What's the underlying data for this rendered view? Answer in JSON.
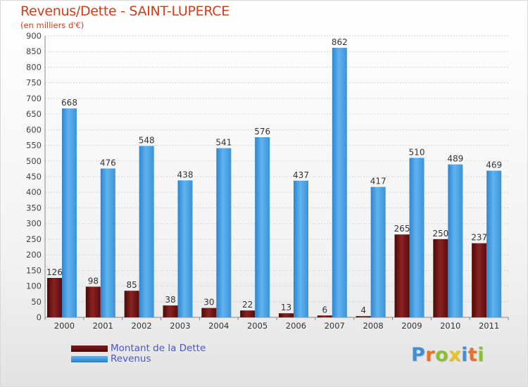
{
  "header": {
    "title": "Revenus/Dette - SAINT-LUPERCE",
    "subtitle": "(en milliers d'€)"
  },
  "legend": {
    "items": [
      {
        "label": "Montant de la Dette",
        "color": "#6b0f0f"
      },
      {
        "label": "Revenus",
        "color": "#3d97dc"
      }
    ]
  },
  "logo": {
    "text": "Proxiti",
    "letters": [
      {
        "ch": "P",
        "color": "#3d8fdb"
      },
      {
        "ch": "r",
        "color": "#e8702a"
      },
      {
        "ch": "o",
        "color": "#8cbf2f"
      },
      {
        "ch": "x",
        "color": "#e8c21e"
      },
      {
        "ch": "i",
        "color": "#3d8fdb"
      },
      {
        "ch": "t",
        "color": "#e8702a"
      },
      {
        "ch": "i",
        "color": "#8cbf2f"
      }
    ]
  },
  "chart_data": {
    "type": "bar",
    "title": "Revenus/Dette - SAINT-LUPERCE",
    "subtitle": "(en milliers d'€)",
    "categories": [
      "2000",
      "2001",
      "2002",
      "2003",
      "2004",
      "2005",
      "2006",
      "2007",
      "2008",
      "2009",
      "2010",
      "2011"
    ],
    "series": [
      {
        "name": "Montant de la Dette",
        "color": "#6b0f0f",
        "values": [
          126,
          98,
          85,
          38,
          30,
          22,
          13,
          6,
          4,
          265,
          250,
          237
        ]
      },
      {
        "name": "Revenus",
        "color": "#3d97dc",
        "values": [
          668,
          476,
          548,
          438,
          541,
          576,
          437,
          862,
          417,
          510,
          489,
          469
        ]
      }
    ],
    "ylim": [
      0,
      900
    ],
    "yticks": [
      0,
      50,
      100,
      150,
      200,
      250,
      300,
      350,
      400,
      450,
      500,
      550,
      600,
      650,
      700,
      750,
      800,
      850,
      900
    ],
    "grid": true,
    "legend_position": "bottom-left"
  }
}
